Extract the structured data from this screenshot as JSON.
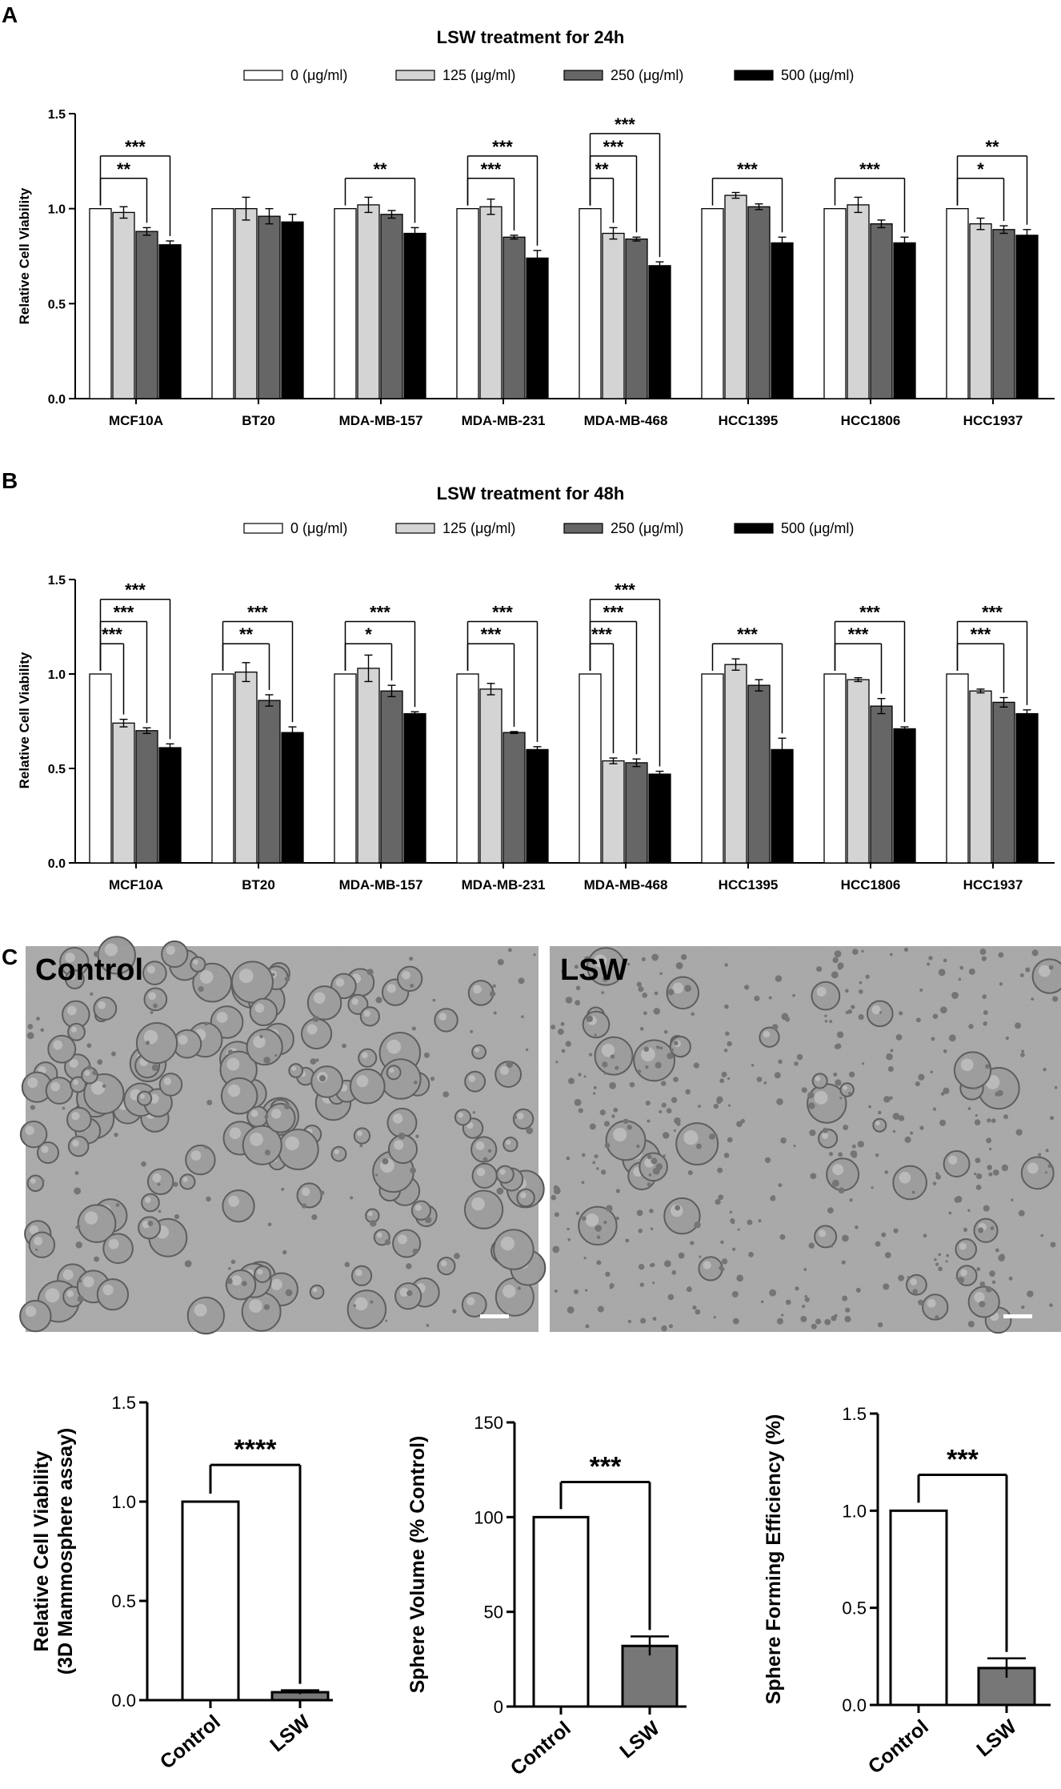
{
  "panel_labels": [
    "A",
    "B",
    "C"
  ],
  "legend": {
    "entries": [
      "0  (μg/ml)",
      "125  (μg/ml)",
      "250  (μg/ml)",
      "500  (μg/ml)"
    ],
    "colors": [
      "#ffffff",
      "#d4d4d4",
      "#666666",
      "#000000"
    ]
  },
  "chart_data": [
    {
      "id": "A",
      "type": "bar",
      "title": "LSW treatment for 24h",
      "ylabel": "Relative Cell Viability",
      "ylim": [
        0,
        1.5
      ],
      "yticks": [
        "0.0",
        "0.5",
        "1.0",
        "1.5"
      ],
      "categories": [
        "MCF10A",
        "BT20",
        "MDA-MB-157",
        "MDA-MB-231",
        "MDA-MB-468",
        "HCC1395",
        "HCC1806",
        "HCC1937"
      ],
      "series": [
        {
          "name": "0  (μg/ml)",
          "values": [
            1.0,
            1.0,
            1.0,
            1.0,
            1.0,
            1.0,
            1.0,
            1.0
          ],
          "err": [
            0,
            0,
            0,
            0,
            0,
            0,
            0,
            0
          ]
        },
        {
          "name": "125  (μg/ml)",
          "values": [
            0.98,
            1.0,
            1.02,
            1.01,
            0.87,
            1.07,
            1.02,
            0.92
          ],
          "err": [
            0.03,
            0.06,
            0.04,
            0.04,
            0.03,
            0.015,
            0.04,
            0.03
          ]
        },
        {
          "name": "250  (μg/ml)",
          "values": [
            0.88,
            0.96,
            0.97,
            0.85,
            0.84,
            1.01,
            0.92,
            0.89
          ],
          "err": [
            0.02,
            0.04,
            0.02,
            0.01,
            0.01,
            0.015,
            0.02,
            0.02
          ]
        },
        {
          "name": "500  (μg/ml)",
          "values": [
            0.81,
            0.93,
            0.87,
            0.74,
            0.7,
            0.82,
            0.82,
            0.86
          ],
          "err": [
            0.02,
            0.04,
            0.03,
            0.04,
            0.02,
            0.03,
            0.03,
            0.03
          ]
        }
      ],
      "significance": [
        {
          "group": 0,
          "to": 2,
          "level": 0,
          "label": "**"
        },
        {
          "group": 0,
          "to": 3,
          "level": 1,
          "label": "***"
        },
        {
          "group": 2,
          "to": 3,
          "level": 0,
          "label": "**"
        },
        {
          "group": 3,
          "to": 2,
          "level": 0,
          "label": "***"
        },
        {
          "group": 3,
          "to": 3,
          "level": 1,
          "label": "***"
        },
        {
          "group": 4,
          "to": 1,
          "level": 0,
          "label": "**"
        },
        {
          "group": 4,
          "to": 2,
          "level": 1,
          "label": "***"
        },
        {
          "group": 4,
          "to": 3,
          "level": 2,
          "label": "***"
        },
        {
          "group": 5,
          "to": 3,
          "level": 0,
          "label": "***"
        },
        {
          "group": 6,
          "to": 3,
          "level": 0,
          "label": "***"
        },
        {
          "group": 7,
          "to": 2,
          "level": 0,
          "label": "*"
        },
        {
          "group": 7,
          "to": 3,
          "level": 1,
          "label": "**"
        }
      ]
    },
    {
      "id": "B",
      "type": "bar",
      "title": "LSW treatment for 48h",
      "ylabel": "Relative Cell Viability",
      "ylim": [
        0,
        1.5
      ],
      "yticks": [
        "0.0",
        "0.5",
        "1.0",
        "1.5"
      ],
      "categories": [
        "MCF10A",
        "BT20",
        "MDA-MB-157",
        "MDA-MB-231",
        "MDA-MB-468",
        "HCC1395",
        "HCC1806",
        "HCC1937"
      ],
      "series": [
        {
          "name": "0  (μg/ml)",
          "values": [
            1.0,
            1.0,
            1.0,
            1.0,
            1.0,
            1.0,
            1.0,
            1.0
          ],
          "err": [
            0,
            0,
            0,
            0,
            0,
            0,
            0,
            0
          ]
        },
        {
          "name": "125  (μg/ml)",
          "values": [
            0.74,
            1.01,
            1.03,
            0.92,
            0.54,
            1.05,
            0.97,
            0.91
          ],
          "err": [
            0.02,
            0.05,
            0.07,
            0.03,
            0.015,
            0.03,
            0.01,
            0.01
          ]
        },
        {
          "name": "250  (μg/ml)",
          "values": [
            0.7,
            0.86,
            0.91,
            0.69,
            0.53,
            0.94,
            0.83,
            0.85
          ],
          "err": [
            0.015,
            0.03,
            0.03,
            0.005,
            0.02,
            0.03,
            0.04,
            0.025
          ]
        },
        {
          "name": "500  (μg/ml)",
          "values": [
            0.61,
            0.69,
            0.79,
            0.6,
            0.47,
            0.6,
            0.71,
            0.79
          ],
          "err": [
            0.02,
            0.03,
            0.01,
            0.015,
            0.015,
            0.06,
            0.01,
            0.02
          ]
        }
      ],
      "significance": [
        {
          "group": 0,
          "to": 1,
          "level": 0,
          "label": "***"
        },
        {
          "group": 0,
          "to": 2,
          "level": 1,
          "label": "***"
        },
        {
          "group": 0,
          "to": 3,
          "level": 2,
          "label": "***"
        },
        {
          "group": 1,
          "to": 2,
          "level": 0,
          "label": "**"
        },
        {
          "group": 1,
          "to": 3,
          "level": 1,
          "label": "***"
        },
        {
          "group": 2,
          "to": 2,
          "level": 0,
          "label": "*"
        },
        {
          "group": 2,
          "to": 3,
          "level": 1,
          "label": "***"
        },
        {
          "group": 3,
          "to": 2,
          "level": 0,
          "label": "***"
        },
        {
          "group": 3,
          "to": 3,
          "level": 1,
          "label": "***"
        },
        {
          "group": 4,
          "to": 1,
          "level": 0,
          "label": "***"
        },
        {
          "group": 4,
          "to": 2,
          "level": 1,
          "label": "***"
        },
        {
          "group": 4,
          "to": 3,
          "level": 2,
          "label": "***"
        },
        {
          "group": 5,
          "to": 3,
          "level": 0,
          "label": "***"
        },
        {
          "group": 6,
          "to": 2,
          "level": 0,
          "label": "***"
        },
        {
          "group": 6,
          "to": 3,
          "level": 1,
          "label": "***"
        },
        {
          "group": 7,
          "to": 2,
          "level": 0,
          "label": "***"
        },
        {
          "group": 7,
          "to": 3,
          "level": 1,
          "label": "***"
        }
      ]
    },
    {
      "id": "C1",
      "type": "bar",
      "ylabel_lines": [
        "Relative Cell Viability",
        "(3D Mammosphere assay)"
      ],
      "ylim": [
        0,
        1.5
      ],
      "yticks": [
        "0.0",
        "0.5",
        "1.0",
        "1.5"
      ],
      "categories": [
        "Control",
        "LSW"
      ],
      "values": [
        1.0,
        0.04
      ],
      "err": [
        0,
        0.01
      ],
      "significance": "****"
    },
    {
      "id": "C2",
      "type": "bar",
      "ylabel_lines": [
        "Sphere Volume (% Control)"
      ],
      "ylim": [
        0,
        150
      ],
      "yticks": [
        "0",
        "50",
        "100",
        "150"
      ],
      "categories": [
        "Control",
        "LSW"
      ],
      "values": [
        100,
        32
      ],
      "err": [
        0,
        5
      ],
      "significance": "***"
    },
    {
      "id": "C3",
      "type": "bar",
      "ylabel_lines": [
        "Sphere Forming Efficiency (%)"
      ],
      "ylim": [
        0,
        1.5
      ],
      "yticks": [
        "0.0",
        "0.5",
        "1.0",
        "1.5"
      ],
      "categories": [
        "Control",
        "LSW"
      ],
      "values": [
        1.0,
        0.19
      ],
      "err": [
        0,
        0.05
      ],
      "significance": "***"
    }
  ],
  "micrographs": {
    "left_label": "Control",
    "right_label": "LSW"
  }
}
